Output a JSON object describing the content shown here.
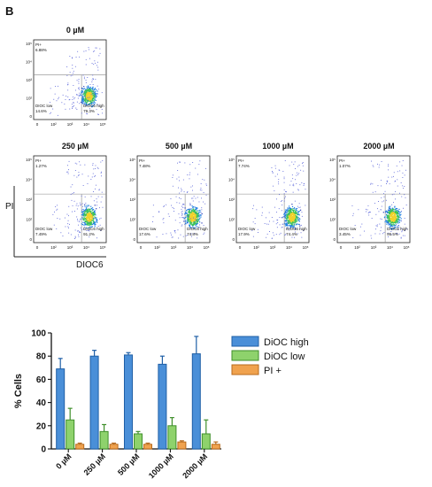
{
  "panel_label": "B",
  "flow_axes": {
    "y_label": "PI",
    "x_label": "DIOC6"
  },
  "flow_plots": [
    {
      "title": "0 µM",
      "pi_label": "PI+",
      "pi_pct": "6.88%",
      "low_label": "DIOC low",
      "low_pct": "14.6%",
      "high_label": "DIOC6 high",
      "high_pct": "79.3%"
    },
    {
      "title": "250 µM",
      "pi_label": "PI+",
      "pi_pct": "1.27%",
      "low_label": "DIOC low",
      "low_pct": "7.49%",
      "high_label": "DIOC6 high",
      "high_pct": "91.2%"
    },
    {
      "title": "500 µM",
      "pi_label": "PI+",
      "pi_pct": "7.48%",
      "low_label": "DIOC low",
      "low_pct": "17.6%",
      "high_label": "DIOC6 high",
      "high_pct": "74.8%"
    },
    {
      "title": "1000 µM",
      "pi_label": "PI+",
      "pi_pct": "7.74%",
      "low_label": "DIOC low",
      "low_pct": "17.9%",
      "high_label": "DIOC6 high",
      "high_pct": "74.4%"
    },
    {
      "title": "2000 µM",
      "pi_label": "PI+",
      "pi_pct": "1.07%",
      "low_label": "DIOC low",
      "low_pct": "3.45%",
      "high_label": "DIOC6 high",
      "high_pct": "95.5%"
    }
  ],
  "chart_data": {
    "type": "bar",
    "ylabel": "% Cells",
    "xlabel": "",
    "ylim": [
      0,
      100
    ],
    "yticks": [
      0,
      20,
      40,
      60,
      80,
      100
    ],
    "categories": [
      "0 µM",
      "250 µM",
      "500 µM",
      "1000 µM",
      "2000 µM"
    ],
    "series": [
      {
        "name": "DiOC high",
        "color": "#4a8fd8",
        "edge": "#1f5fa6",
        "values": [
          69,
          80,
          81,
          73,
          82
        ],
        "errors": [
          9,
          5,
          2,
          7,
          15
        ]
      },
      {
        "name": "DiOC low",
        "color": "#8ed26c",
        "edge": "#3f8f2a",
        "values": [
          25,
          15,
          13,
          20,
          13
        ],
        "errors": [
          10,
          6,
          2,
          7,
          12
        ]
      },
      {
        "name": "PI +",
        "color": "#f0a24e",
        "edge": "#b86a1c",
        "values": [
          4,
          4,
          4,
          6,
          4
        ],
        "errors": [
          1,
          1,
          1,
          1,
          2
        ]
      }
    ],
    "legend_position": "top-right",
    "grid": false
  }
}
